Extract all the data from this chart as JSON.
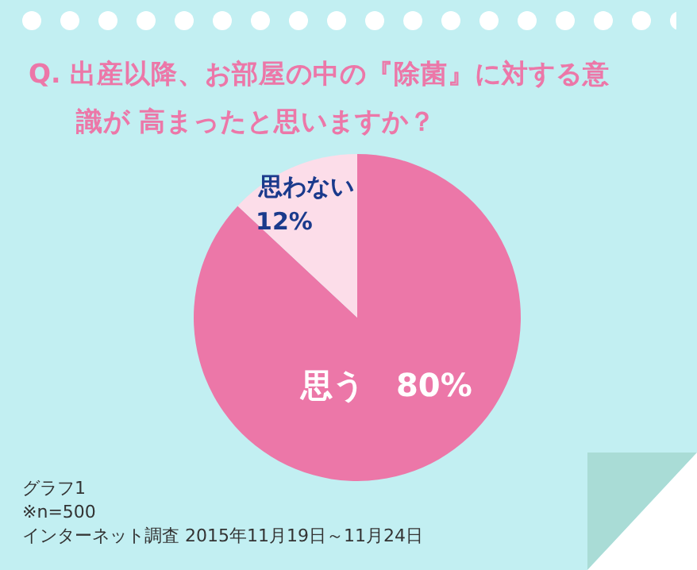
{
  "chart_data": {
    "type": "pie",
    "title": "Q. 出産以降、お部屋の中の『除菌』に対する意識が 高まったと思いますか？",
    "categories": [
      "思う",
      "思わない"
    ],
    "values": [
      80,
      12
    ],
    "colors": [
      "#ec77a8",
      "#fcdde9"
    ],
    "value_labels": [
      "80%",
      "12%"
    ],
    "legend": false,
    "annotations": [
      "グラフ1",
      "※n=500",
      "インターネット調査  2015年11月19日～11月24日"
    ]
  }
}
